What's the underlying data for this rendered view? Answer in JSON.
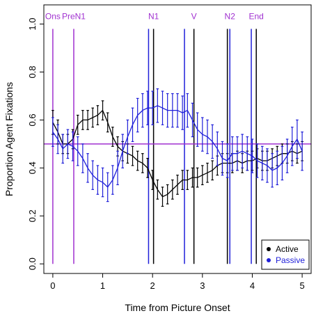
{
  "chart_data": {
    "type": "line",
    "xlabel": "Time from Picture Onset",
    "ylabel": "Proportion Agent Fixations",
    "xlim": [
      -0.18,
      5.18
    ],
    "ylim": [
      -0.04,
      1.08
    ],
    "x_ticks": [
      0,
      1,
      2,
      3,
      4,
      5
    ],
    "x_tick_labels": [
      "0",
      "1",
      "2",
      "3",
      "4",
      "5"
    ],
    "y_ticks": [
      0.0,
      0.2,
      0.4,
      0.6,
      0.8,
      1.0
    ],
    "y_tick_labels": [
      "0.0",
      "0.2",
      "0.4",
      "0.6",
      "0.8",
      "1.0"
    ],
    "grid": false,
    "legend_position": "bottom-right",
    "reference_line": {
      "y": 0.5,
      "color": "#a030d0"
    },
    "event_colors": {
      "purple": "#a030d0",
      "black": "#000000",
      "blue": "#1f1fd9"
    },
    "events": [
      {
        "label": "Ons",
        "x": 0.0,
        "color": "purple"
      },
      {
        "label": "PreN1",
        "x": 0.42,
        "color": "purple"
      },
      {
        "label": "",
        "x": 1.92,
        "color": "blue"
      },
      {
        "label": "N1",
        "x": 2.02,
        "color": "black"
      },
      {
        "label": "",
        "x": 2.64,
        "color": "blue"
      },
      {
        "label": "V",
        "x": 2.83,
        "color": "black"
      },
      {
        "label": "",
        "x": 3.5,
        "color": "black"
      },
      {
        "label": "N2",
        "x": 3.55,
        "color": "blue"
      },
      {
        "label": "",
        "x": 3.98,
        "color": "blue"
      },
      {
        "label": "End",
        "x": 4.08,
        "color": "black"
      }
    ],
    "series": [
      {
        "name": "Active",
        "color": "#000000",
        "x": [
          0.0,
          0.1,
          0.2,
          0.3,
          0.4,
          0.5,
          0.6,
          0.7,
          0.8,
          0.9,
          1.0,
          1.1,
          1.2,
          1.3,
          1.4,
          1.5,
          1.6,
          1.7,
          1.8,
          1.9,
          2.0,
          2.1,
          2.2,
          2.3,
          2.4,
          2.5,
          2.6,
          2.7,
          2.8,
          2.9,
          3.0,
          3.1,
          3.2,
          3.3,
          3.4,
          3.5,
          3.6,
          3.7,
          3.8,
          3.9,
          4.0,
          4.1,
          4.2,
          4.3,
          4.4,
          4.5,
          4.6,
          4.7,
          4.8,
          4.9,
          5.0
        ],
        "y": [
          0.59,
          0.55,
          0.5,
          0.5,
          0.52,
          0.58,
          0.6,
          0.6,
          0.61,
          0.62,
          0.64,
          0.59,
          0.53,
          0.49,
          0.47,
          0.46,
          0.45,
          0.43,
          0.42,
          0.4,
          0.35,
          0.31,
          0.28,
          0.29,
          0.31,
          0.33,
          0.35,
          0.35,
          0.36,
          0.36,
          0.37,
          0.38,
          0.39,
          0.41,
          0.42,
          0.42,
          0.42,
          0.43,
          0.42,
          0.43,
          0.43,
          0.44,
          0.43,
          0.43,
          0.44,
          0.45,
          0.46,
          0.46,
          0.47,
          0.46,
          0.47
        ],
        "err": [
          0.05,
          0.05,
          0.04,
          0.04,
          0.04,
          0.04,
          0.04,
          0.04,
          0.04,
          0.04,
          0.04,
          0.04,
          0.04,
          0.04,
          0.04,
          0.04,
          0.04,
          0.04,
          0.04,
          0.04,
          0.04,
          0.04,
          0.04,
          0.04,
          0.04,
          0.04,
          0.04,
          0.04,
          0.04,
          0.04,
          0.04,
          0.04,
          0.04,
          0.04,
          0.04,
          0.04,
          0.04,
          0.04,
          0.04,
          0.04,
          0.04,
          0.04,
          0.04,
          0.04,
          0.04,
          0.04,
          0.04,
          0.04,
          0.04,
          0.04,
          0.04
        ]
      },
      {
        "name": "Passive",
        "color": "#1f1fd9",
        "x": [
          0.0,
          0.1,
          0.2,
          0.3,
          0.4,
          0.5,
          0.6,
          0.7,
          0.8,
          0.9,
          1.0,
          1.1,
          1.2,
          1.3,
          1.4,
          1.5,
          1.6,
          1.7,
          1.8,
          1.9,
          2.0,
          2.1,
          2.2,
          2.3,
          2.4,
          2.5,
          2.6,
          2.7,
          2.8,
          2.9,
          3.0,
          3.1,
          3.2,
          3.3,
          3.4,
          3.5,
          3.6,
          3.7,
          3.8,
          3.9,
          4.0,
          4.1,
          4.2,
          4.3,
          4.4,
          4.5,
          4.6,
          4.7,
          4.8,
          4.9,
          5.0
        ],
        "y": [
          0.55,
          0.52,
          0.48,
          0.5,
          0.49,
          0.47,
          0.44,
          0.4,
          0.37,
          0.35,
          0.34,
          0.32,
          0.35,
          0.4,
          0.47,
          0.53,
          0.58,
          0.62,
          0.64,
          0.65,
          0.65,
          0.66,
          0.65,
          0.64,
          0.64,
          0.64,
          0.63,
          0.64,
          0.6,
          0.56,
          0.54,
          0.53,
          0.51,
          0.48,
          0.44,
          0.43,
          0.46,
          0.46,
          0.47,
          0.46,
          0.45,
          0.43,
          0.42,
          0.41,
          0.39,
          0.4,
          0.42,
          0.45,
          0.49,
          0.52,
          0.47
        ],
        "err": [
          0.06,
          0.06,
          0.06,
          0.06,
          0.06,
          0.06,
          0.06,
          0.06,
          0.06,
          0.06,
          0.06,
          0.06,
          0.06,
          0.07,
          0.07,
          0.07,
          0.07,
          0.07,
          0.07,
          0.07,
          0.07,
          0.07,
          0.07,
          0.07,
          0.07,
          0.07,
          0.07,
          0.07,
          0.07,
          0.07,
          0.07,
          0.07,
          0.07,
          0.07,
          0.07,
          0.07,
          0.07,
          0.07,
          0.07,
          0.07,
          0.07,
          0.07,
          0.07,
          0.07,
          0.07,
          0.07,
          0.07,
          0.07,
          0.08,
          0.08,
          0.08
        ]
      }
    ]
  }
}
